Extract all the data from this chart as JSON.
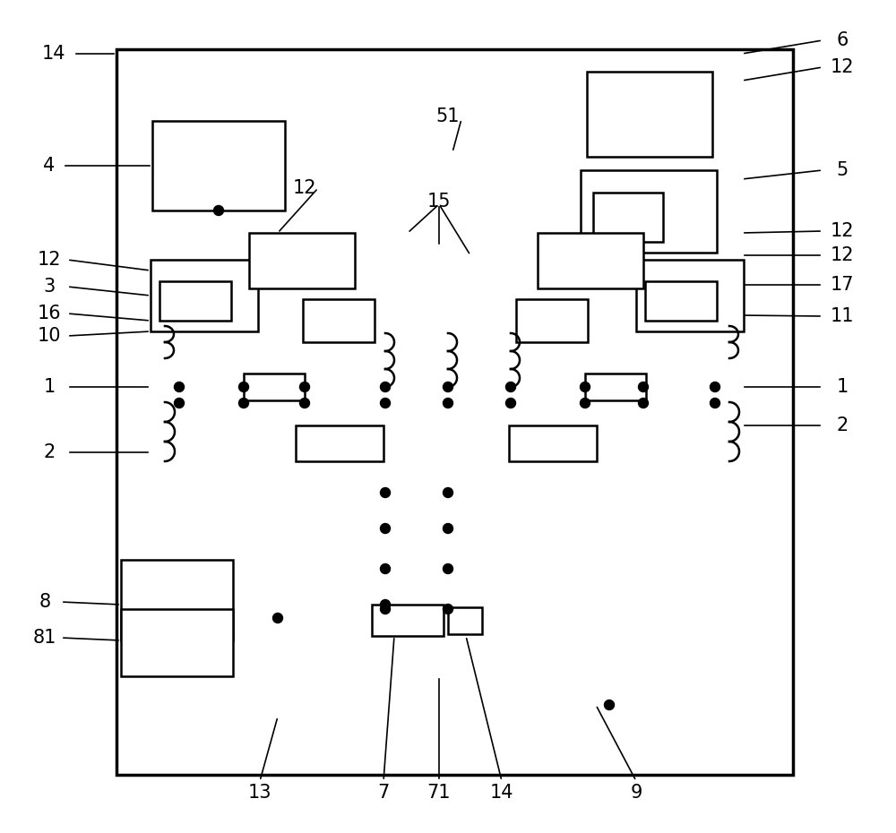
{
  "bg": "#ffffff",
  "lc": "#000000",
  "lw": 1.5,
  "fw": 10.0,
  "fh": 9.3
}
